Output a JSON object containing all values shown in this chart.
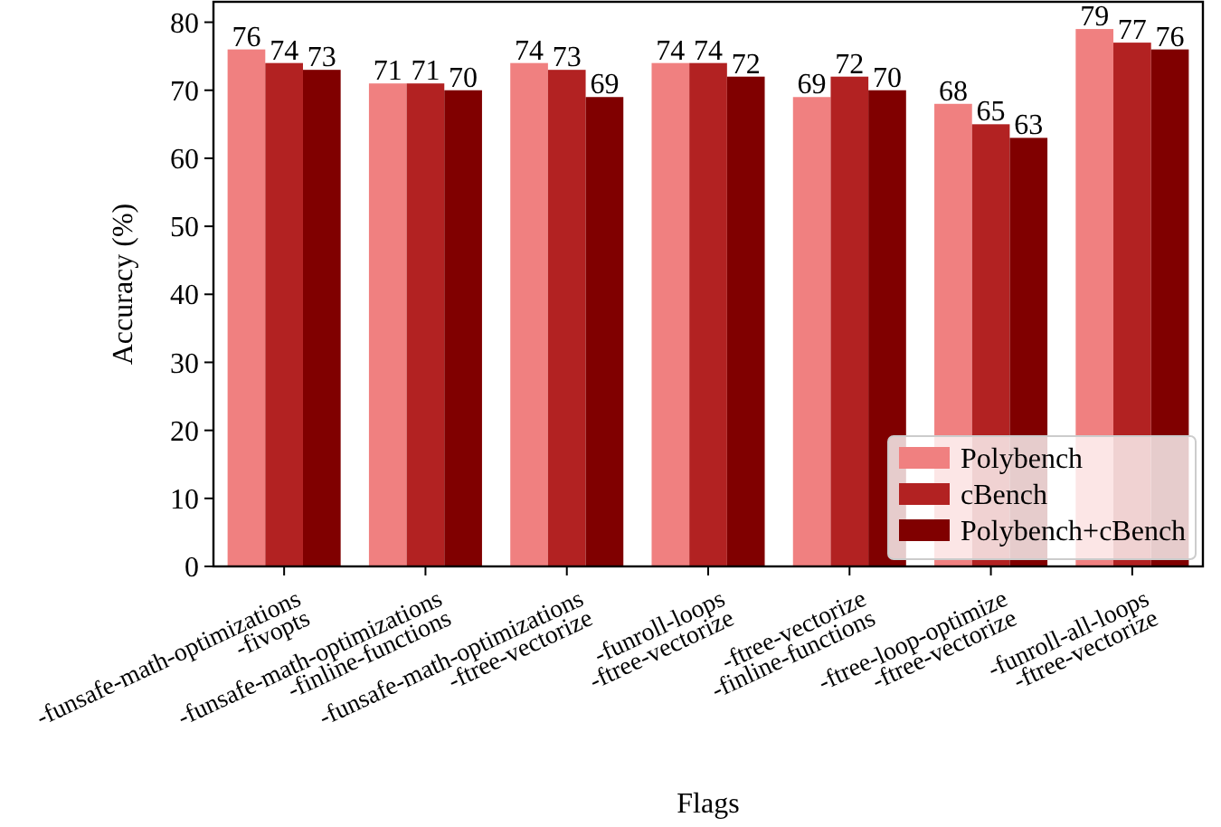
{
  "chart_data": {
    "type": "bar",
    "xlabel": "Flags",
    "ylabel": "Accuracy (%)",
    "categories": [
      "-funsafe-math-optimizations\n-fivopts",
      "-funsafe-math-optimizations\n-finline-functions",
      "-funsafe-math-optimizations\n-ftree-vectorize",
      "-funroll-loops\n-ftree-vectorize",
      "-ftree-vectorize\n-finline-functions",
      "-ftree-loop-optimize\n-ftree-vectorize",
      "-funroll-all-loops\n-ftree-vectorize"
    ],
    "series": [
      {
        "name": "Polybench",
        "color": "#f08080",
        "values": [
          76,
          71,
          74,
          74,
          69,
          68,
          79
        ]
      },
      {
        "name": "cBench",
        "color": "#b22222",
        "values": [
          74,
          71,
          73,
          74,
          72,
          65,
          77
        ]
      },
      {
        "name": "Polybench+cBench",
        "color": "#800000",
        "values": [
          73,
          70,
          69,
          72,
          70,
          63,
          76
        ]
      }
    ],
    "ylim": [
      0,
      83
    ],
    "yticks": [
      0,
      10,
      20,
      30,
      40,
      50,
      60,
      70,
      80
    ],
    "data_labels": true,
    "legend": "bottom right",
    "grid": false
  }
}
